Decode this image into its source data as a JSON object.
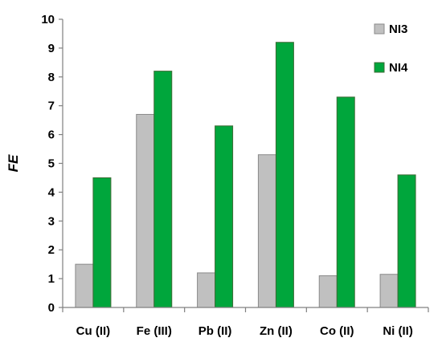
{
  "chart_data": {
    "type": "bar",
    "title": "",
    "xlabel": "",
    "ylabel": "FE",
    "ylim": [
      0,
      10
    ],
    "yticks": [
      0,
      1,
      2,
      3,
      4,
      5,
      6,
      7,
      8,
      9,
      10
    ],
    "grid": false,
    "legend_position": "top-right",
    "categories": [
      "Cu (II)",
      "Fe (III)",
      "Pb (II)",
      "Zn (II)",
      "Co (II)",
      "Ni (II)"
    ],
    "series": [
      {
        "name": "NI3",
        "color": "#c0c0c0",
        "values": [
          1.5,
          6.7,
          1.2,
          5.3,
          1.1,
          1.15
        ]
      },
      {
        "name": "NI4",
        "color": "#00a63c",
        "values": [
          4.5,
          8.2,
          6.3,
          9.2,
          7.3,
          4.6
        ]
      }
    ]
  }
}
